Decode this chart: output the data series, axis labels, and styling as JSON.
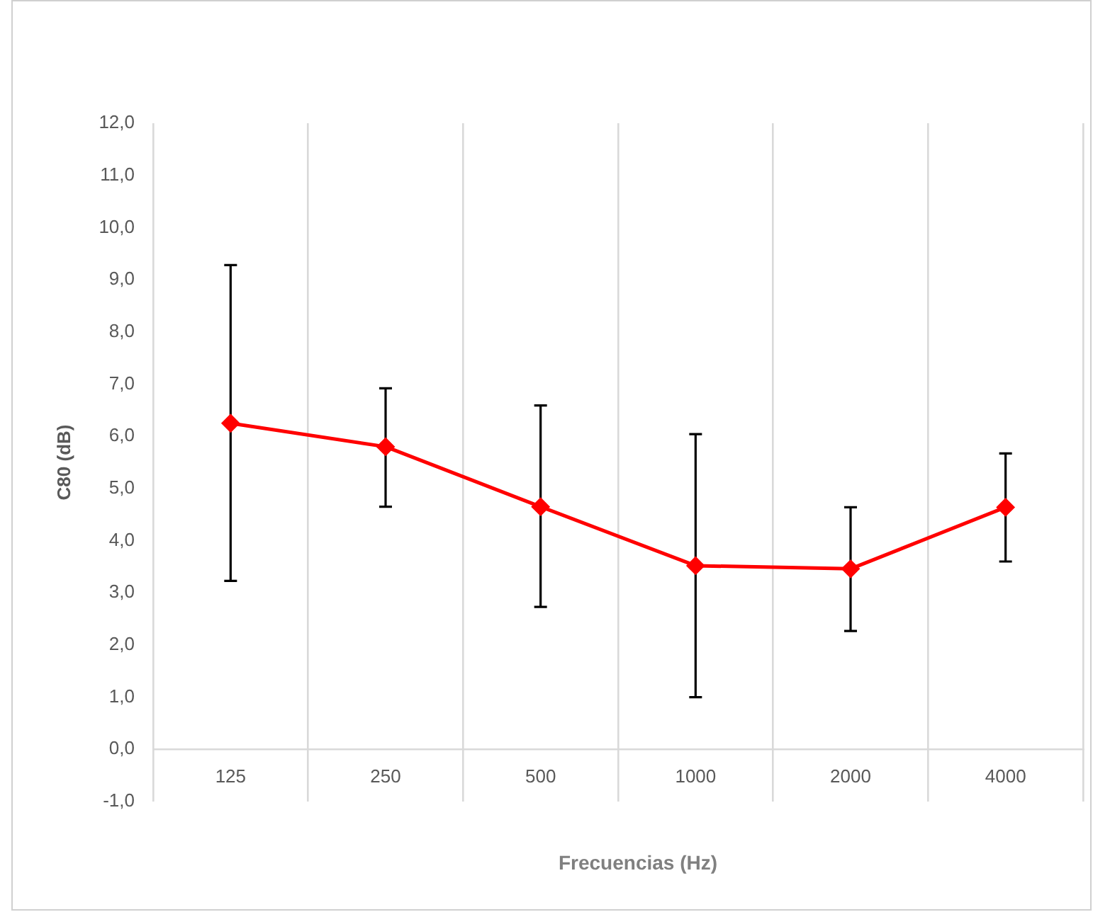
{
  "chart_data": {
    "type": "line",
    "ylabel": "C80 (dB)",
    "xlabel": "Frecuencias (Hz)",
    "categories": [
      "125",
      "250",
      "500",
      "1000",
      "2000",
      "4000"
    ],
    "series": [
      {
        "color": "#ff0000",
        "values": [
          6.25,
          5.8,
          4.65,
          3.52,
          3.46,
          4.64
        ],
        "errors": [
          [
            3.23,
            9.28
          ],
          [
            4.65,
            6.92
          ],
          [
            2.73,
            6.59
          ],
          [
            1.0,
            6.04
          ],
          [
            2.27,
            4.64
          ],
          [
            3.6,
            5.67
          ]
        ]
      }
    ],
    "ylim": [
      -1,
      12
    ],
    "yticks": [
      {
        "value": -1,
        "label": "-1,0"
      },
      {
        "value": 0,
        "label": "0,0"
      },
      {
        "value": 1,
        "label": "1,0"
      },
      {
        "value": 2,
        "label": "2,0"
      },
      {
        "value": 3,
        "label": "3,0"
      },
      {
        "value": 4,
        "label": "4,0"
      },
      {
        "value": 5,
        "label": "5,0"
      },
      {
        "value": 6,
        "label": "6,0"
      },
      {
        "value": 7,
        "label": "7,0"
      },
      {
        "value": 8,
        "label": "8,0"
      },
      {
        "value": 9,
        "label": "9,0"
      },
      {
        "value": 10,
        "label": "10,0"
      },
      {
        "value": 11,
        "label": "11,0"
      },
      {
        "value": 12,
        "label": "12,0"
      }
    ],
    "grid": "x",
    "marker": "diamond",
    "line_style": "solid"
  }
}
